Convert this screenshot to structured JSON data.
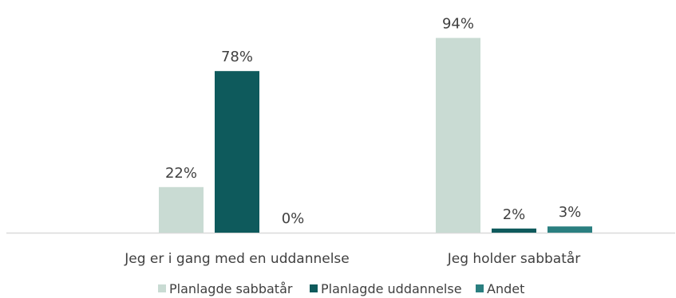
{
  "chart_data": {
    "type": "bar",
    "categories": [
      "Jeg er i gang med en uddannelse",
      "Jeg holder sabbatår"
    ],
    "series": [
      {
        "name": "Planlagde sabbatår",
        "values": [
          22,
          94
        ],
        "labels": [
          "22%",
          "94%"
        ],
        "color": "#c9dbd3"
      },
      {
        "name": "Planlagde uddannelse",
        "values": [
          78,
          2
        ],
        "labels": [
          "78%",
          "2%"
        ],
        "color": "#0e5a5c"
      },
      {
        "name": "Andet",
        "values": [
          0,
          3
        ],
        "labels": [
          "0%",
          "3%"
        ],
        "color": "#2a7f80"
      }
    ],
    "ylim": [
      0,
      100
    ],
    "grid": false,
    "legend": "bottom",
    "title": "",
    "xlabel": "",
    "ylabel": ""
  }
}
